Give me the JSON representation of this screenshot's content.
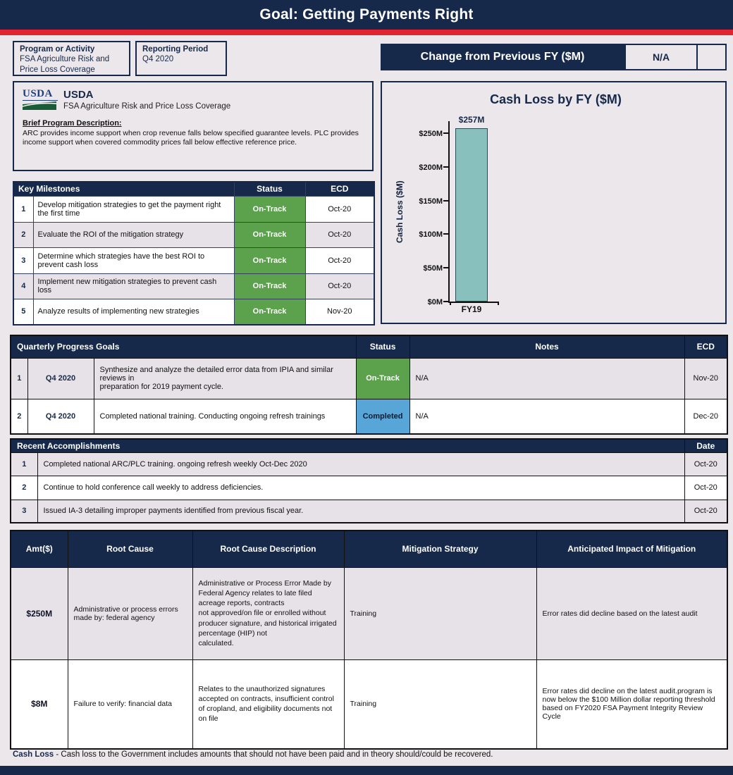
{
  "colors": {
    "navy": "#16294B",
    "red": "#E02430",
    "status_green": "#5CA14C",
    "status_blue": "#58A5D8",
    "bar_teal": "#87C0BC",
    "page_bg": "#ECE7EA",
    "row_alt": "#E7E2E7"
  },
  "header": {
    "title": "Goal: Getting Payments Right"
  },
  "meta": {
    "program_label": "Program or Activity",
    "program_value": "FSA Agriculture Risk and Price Loss Coverage",
    "reporting_label": "Reporting Period",
    "reporting_value": "Q4 2020",
    "change_label": "Change from Previous FY ($M)",
    "change_value": "N/A"
  },
  "program_card": {
    "logo_text": "USDA",
    "org_name": "USDA",
    "org_sub": "FSA Agriculture Risk and Price Loss Coverage",
    "desc_label": "Brief Program Description:",
    "desc_text": "ARC provides income support when crop revenue falls below specified guarantee levels. PLC provides\nincome support when covered commodity prices fall below effective reference price."
  },
  "milestones": {
    "title": "Key Milestones",
    "col_status": "Status",
    "col_ecd": "ECD",
    "rows": [
      {
        "num": "1",
        "text": "Develop mitigation strategies to get the payment right the first time",
        "status": "On-Track",
        "ecd": "Oct-20"
      },
      {
        "num": "2",
        "text": "Evaluate the ROI of the mitigation strategy",
        "status": "On-Track",
        "ecd": "Oct-20"
      },
      {
        "num": "3",
        "text": "Determine which strategies have the best ROI to prevent cash loss",
        "status": "On-Track",
        "ecd": "Oct-20"
      },
      {
        "num": "4",
        "text": "Implement new mitigation strategies to prevent cash loss",
        "status": "On-Track",
        "ecd": "Oct-20"
      },
      {
        "num": "5",
        "text": "Analyze results of implementing new strategies",
        "status": "On-Track",
        "ecd": "Nov-20"
      }
    ]
  },
  "chart_data": {
    "type": "bar",
    "title": "Cash Loss by FY ($M)",
    "xlabel": "",
    "ylabel": "Cash Loss ($M)",
    "categories": [
      "FY19"
    ],
    "values": [
      257
    ],
    "bar_labels": [
      "$257M"
    ],
    "ylim": [
      0,
      270
    ],
    "ytick_values": [
      0,
      50,
      100,
      150,
      200,
      250
    ],
    "ytick_labels": [
      "$0M",
      "$50M",
      "$100M",
      "$150M",
      "$200M",
      "$250M"
    ],
    "bar_color": "#87C0BC",
    "grid": false,
    "legend": false
  },
  "quarterly": {
    "title": "Quarterly Progress Goals",
    "col_status": "Status",
    "col_notes": "Notes",
    "col_ecd": "ECD",
    "rows": [
      {
        "num": "1",
        "period": "Q4 2020",
        "text": "Synthesize and analyze the detailed error data from IPIA and similar reviews in\npreparation for 2019 payment cycle.",
        "status": "On-Track",
        "status_type": "green",
        "notes": "N/A",
        "ecd": "Nov-20"
      },
      {
        "num": "2",
        "period": "Q4 2020",
        "text": "Completed national training. Conducting ongoing refresh trainings",
        "status": "Completed",
        "status_type": "blue",
        "notes": "N/A",
        "ecd": "Dec-20"
      }
    ]
  },
  "accomplishments": {
    "title": "Recent  Accomplishments",
    "col_date": "Date",
    "rows": [
      {
        "num": "1",
        "text": "Completed national ARC/PLC training. ongoing refresh weekly Oct-Dec 2020",
        "date": "Oct-20"
      },
      {
        "num": "2",
        "text": "Continue to hold conference call weekly to address deficiencies.",
        "date": "Oct-20"
      },
      {
        "num": "3",
        "text": "Issued IA-3 detailing improper payments identified from previous fiscal year.",
        "date": "Oct-20"
      }
    ]
  },
  "root_causes": {
    "headers": [
      "Amt($)",
      "Root Cause",
      "Root Cause Description",
      "Mitigation Strategy",
      "Anticipated Impact of Mitigation"
    ],
    "rows": [
      {
        "amt": "$250M",
        "cause": "Administrative or process errors made by: federal agency",
        "description": "Administrative or Process Error Made by Federal Agency relates to late filed acreage reports, contracts\nnot approved/on file or enrolled without producer signature, and historical irrigated percentage (HIP) not\ncalculated.",
        "strategy": "Training",
        "impact": "Error rates did decline based on the latest audit"
      },
      {
        "amt": "$8M",
        "cause": "Failure to verify: financial data",
        "description": "Relates to the unauthorized signatures accepted on contracts, insufficient control of cropland, and eligibility documents not on file",
        "strategy": "Training",
        "impact": "Error rates did decline on the latest audit.program is now below the $100 Million dollar reporting threshold based on FY2020 FSA Payment Integrity Review Cycle"
      }
    ]
  },
  "footer": {
    "term": "Cash Loss",
    "text": " - Cash loss to the Government includes amounts that should not have been paid and in theory should/could be recovered."
  }
}
